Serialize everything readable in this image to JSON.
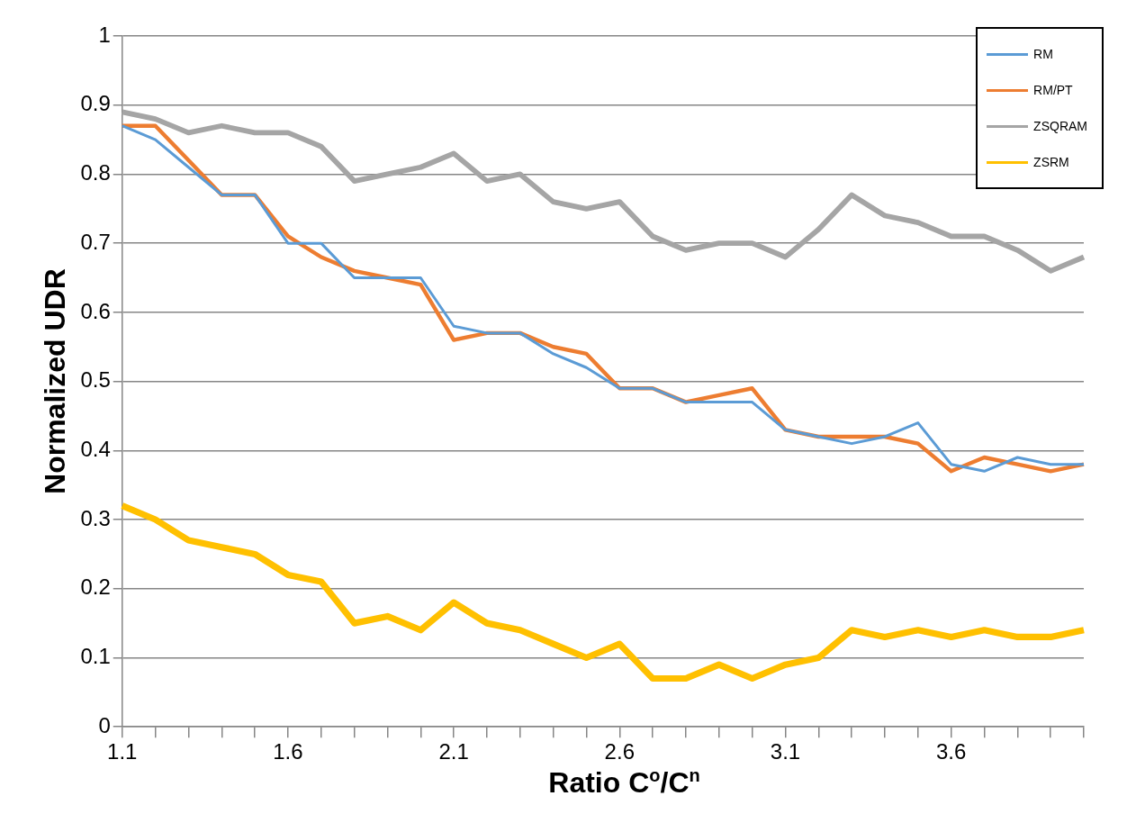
{
  "chart_data": {
    "type": "line",
    "xlabel": "Ratio C$^{o}$/C$^{n}$",
    "ylabel": "Normalized UDR",
    "categories": [
      "1.1",
      null,
      null,
      null,
      null,
      "1.6",
      null,
      null,
      null,
      null,
      "2.1",
      null,
      null,
      null,
      null,
      "2.6",
      null,
      null,
      null,
      null,
      "3.1",
      null,
      null,
      null,
      null,
      "3.6",
      null,
      null,
      null,
      null
    ],
    "series": [
      {
        "name": "RM",
        "color": "#5b9bd5",
        "values": [
          0.87,
          0.85,
          0.81,
          0.77,
          0.77,
          0.7,
          0.7,
          0.65,
          0.65,
          0.65,
          0.58,
          0.57,
          0.57,
          0.54,
          0.52,
          0.49,
          0.49,
          0.47,
          0.47,
          0.47,
          0.43,
          0.42,
          0.41,
          0.42,
          0.44,
          0.38,
          0.37,
          0.39,
          0.38,
          0.38
        ]
      },
      {
        "name": "RM/PT",
        "color": "#ed7d31",
        "values": [
          0.87,
          0.87,
          0.82,
          0.77,
          0.77,
          0.71,
          0.68,
          0.66,
          0.65,
          0.64,
          0.56,
          0.57,
          0.57,
          0.55,
          0.54,
          0.49,
          0.49,
          0.47,
          0.48,
          0.49,
          0.43,
          0.42,
          0.42,
          0.42,
          0.41,
          0.37,
          0.39,
          0.38,
          0.37,
          0.38
        ]
      },
      {
        "name": "ZSQRAM",
        "color": "#a5a5a5",
        "values": [
          0.89,
          0.88,
          0.86,
          0.87,
          0.86,
          0.86,
          0.84,
          0.79,
          0.8,
          0.81,
          0.83,
          0.79,
          0.8,
          0.76,
          0.75,
          0.76,
          0.71,
          0.69,
          0.7,
          0.7,
          0.68,
          0.72,
          0.77,
          0.74,
          0.73,
          0.71,
          0.71,
          0.69,
          0.66,
          0.68
        ]
      },
      {
        "name": "ZSRM",
        "color": "#ffc000",
        "values": [
          0.32,
          0.3,
          0.27,
          0.26,
          0.25,
          0.22,
          0.21,
          0.15,
          0.16,
          0.14,
          0.18,
          0.15,
          0.14,
          0.12,
          0.1,
          0.12,
          0.07,
          0.07,
          0.09,
          0.07,
          0.09,
          0.1,
          0.14,
          0.13,
          0.14,
          0.13,
          0.14,
          0.13,
          0.13,
          0.14
        ]
      }
    ],
    "ylim": [
      0,
      1
    ],
    "yticks": [
      0,
      0.1,
      0.2,
      0.3,
      0.4,
      0.5,
      0.6,
      0.7,
      0.8,
      0.9,
      1
    ],
    "grid": "y",
    "legend": "top right",
    "marker": "none",
    "line_style": "solid"
  }
}
